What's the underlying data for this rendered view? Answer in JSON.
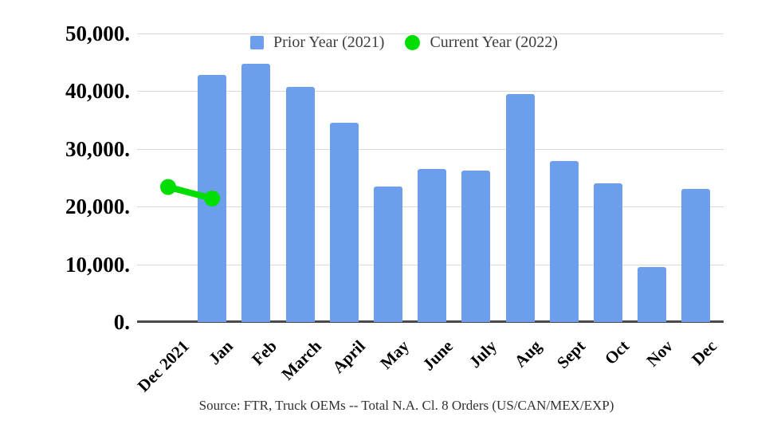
{
  "legend": {
    "prior_label": "Prior Year (2021)",
    "current_label": "Current Year (2022)"
  },
  "source_caption": "Source: FTR, Truck OEMs -- Total N.A. Cl. 8 Orders (US/CAN/MEX/EXP)",
  "colors": {
    "bar": "#6d9eeb",
    "line": "#00dd00",
    "grid": "#d9d9d9",
    "axis_line": "#4a4a4a",
    "legend_text": "#3e3e3e",
    "source_text": "#303030",
    "background": "#ffffff"
  },
  "chart_data": {
    "type": "bar",
    "title": "",
    "categories": [
      "Dec 2021",
      "Jan",
      "Feb",
      "March",
      "April",
      "May",
      "June",
      "July",
      "Aug",
      "Sept",
      "Oct",
      "Nov",
      "Dec"
    ],
    "y_tick_labels": [
      "50,000.",
      "40,000.",
      "30,000.",
      "20,000.",
      "10,000.",
      "0."
    ],
    "ylim": [
      0,
      50000
    ],
    "grid": "horizontal",
    "legend_position": "top",
    "series": [
      {
        "name": "Prior Year (2021)",
        "type": "bar",
        "color": "#6d9eeb",
        "values": [
          null,
          42800,
          44700,
          40700,
          34600,
          23500,
          26500,
          26300,
          39500,
          27900,
          24100,
          9500,
          23100
        ]
      },
      {
        "name": "Current Year (2022)",
        "type": "line",
        "color": "#00dd00",
        "values": [
          23400,
          21400,
          null,
          null,
          null,
          null,
          null,
          null,
          null,
          null,
          null,
          null,
          null
        ]
      }
    ]
  }
}
